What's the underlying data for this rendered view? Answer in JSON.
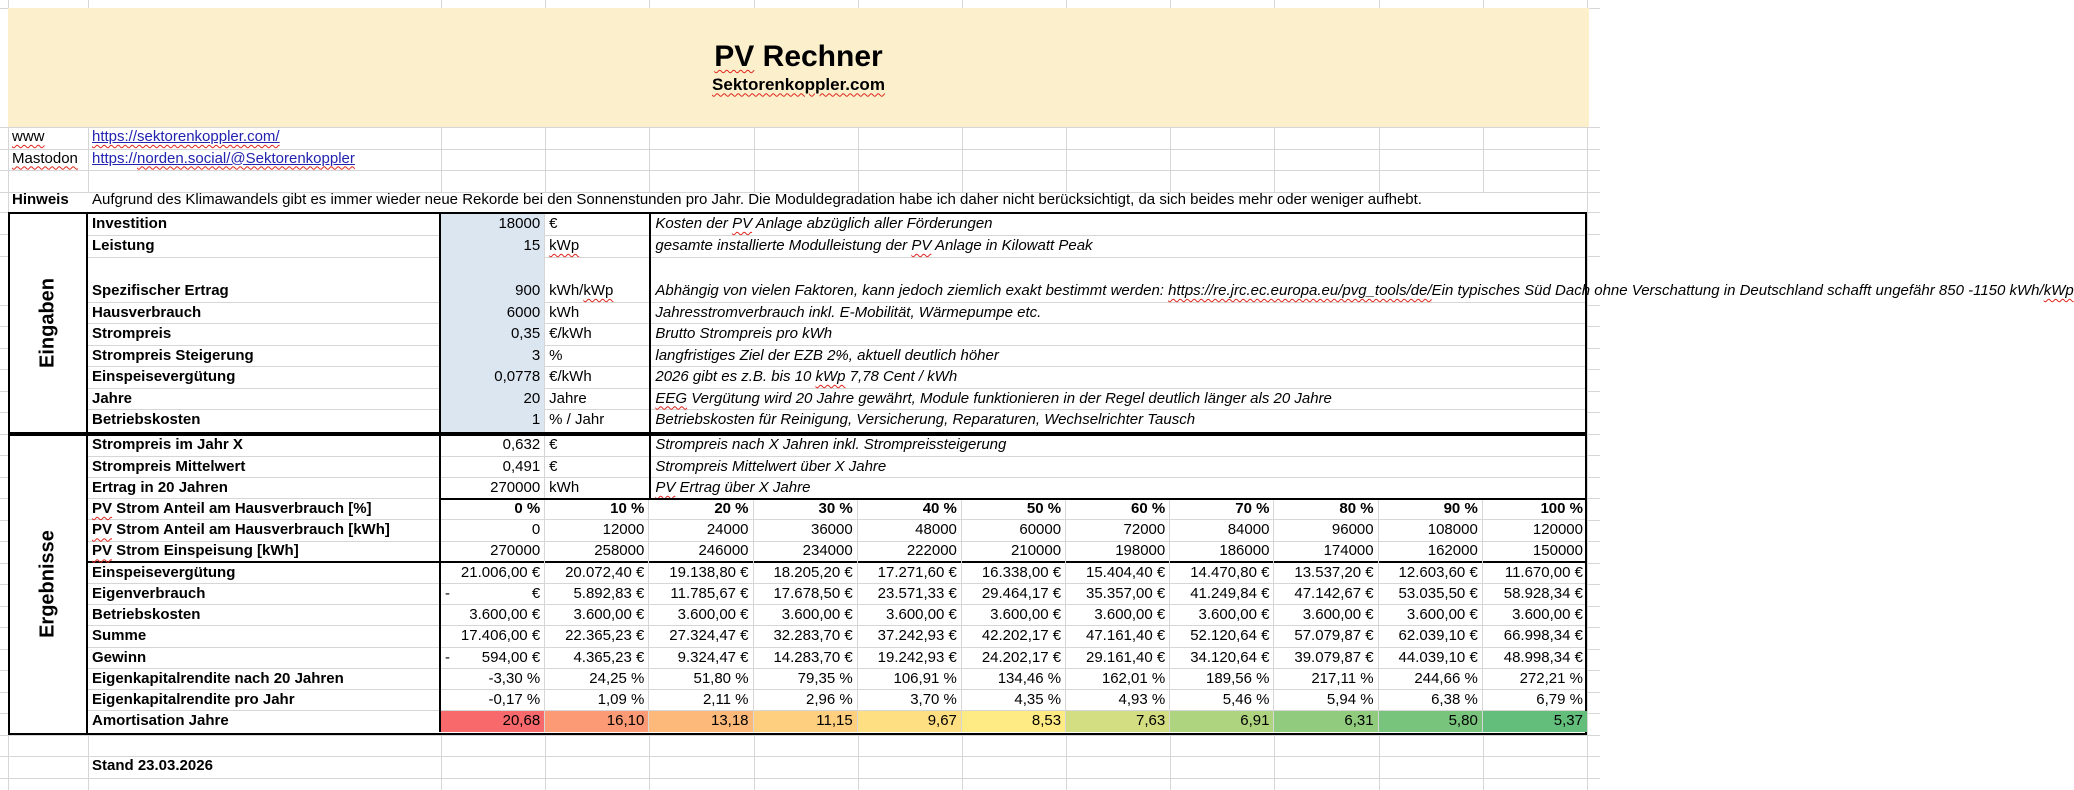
{
  "banner": {
    "title": "PV Rechner",
    "title_sq": [
      "PV"
    ],
    "subtitle": "Sektorenkoppler.com",
    "subtitle_sq": [
      "Sektorenkoppler.com"
    ]
  },
  "links": [
    {
      "label": "www",
      "label_sq": [
        "www"
      ],
      "url": "https://sektorenkoppler.com/",
      "url_sq": [
        "https://sektorenkoppler.com/"
      ]
    },
    {
      "label": "Mastodon",
      "label_sq": [
        "Mastodon"
      ],
      "url": "https://norden.social/@Sektorenkoppler",
      "url_sq": [
        "norden.social/@Sektorenkoppler"
      ]
    }
  ],
  "hinweis": {
    "label": "Hinweis",
    "text": "Aufgrund des Klimawandels gibt es immer wieder neue Rekorde bei den Sonnenstunden pro Jahr. Die Moduldegradation habe ich daher nicht berücksichtigt, da sich beides mehr oder weniger aufhebt."
  },
  "eingaben": {
    "section_label": "Eingaben",
    "rows": [
      {
        "label": "Investition",
        "value": "18000",
        "unit": "€",
        "comment": "Kosten der PV Anlage abzüglich aller Förderungen",
        "comment_sq": [
          "PV"
        ]
      },
      {
        "label": "Leistung",
        "value": "15",
        "unit": "kWp",
        "unit_sq": [
          "kWp"
        ],
        "comment": "gesamte installierte Modulleistung der PV Anlage in Kilowatt Peak",
        "comment_sq": [
          "PV"
        ]
      },
      {
        "label": "Spezifischer Ertrag",
        "value": "900",
        "unit": "kWh/kWp",
        "unit_sq": [
          "kWp"
        ],
        "comment": "Abhängig von vielen Faktoren, kann jedoch ziemlich exakt bestimmt werden: https://re.jrc.ec.europa.eu/pvg_tools/de/\nEin typisches Süd Dach ohne Verschattung in Deutschland schafft ungefähr 850 -1150 kWh/kWp",
        "comment_sq": [
          "https://re.jrc.ec.europa.eu/pvg_tools/de/",
          "kWp"
        ],
        "tall": true
      },
      {
        "label": "Hausverbrauch",
        "value": "6000",
        "unit": "kWh",
        "comment": "Jahresstromverbrauch inkl. E-Mobilität, Wärmepumpe etc."
      },
      {
        "label": "Strompreis",
        "value": "0,35",
        "unit": "€/kWh",
        "comment": "Brutto Strompreis pro kWh"
      },
      {
        "label": "Strompreis Steigerung",
        "value": "3",
        "unit": "%",
        "comment": "langfristiges Ziel der EZB 2%, aktuell deutlich höher"
      },
      {
        "label": "Einspeisevergütung",
        "value": "0,0778",
        "unit": "€/kWh",
        "comment": "2026 gibt es z.B. bis 10 kWp 7,78 Cent / kWh",
        "comment_sq": [
          "kWp"
        ]
      },
      {
        "label": "Jahre",
        "value": "20",
        "unit": "Jahre",
        "comment": "EEG Vergütung wird 20 Jahre gewährt, Module funktionieren in der Regel deutlich länger als 20 Jahre",
        "comment_sq": [
          "EEG"
        ]
      },
      {
        "label": "Betriebskosten",
        "value": "1",
        "unit": "% / Jahr",
        "comment": "Betriebskosten für Reinigung, Versicherung, Reparaturen, Wechselrichter Tausch"
      }
    ]
  },
  "ergebnisse": {
    "section_label": "Ergebnisse",
    "info_rows": [
      {
        "label": "Strompreis im Jahr X",
        "value": "0,632",
        "unit": "€",
        "comment": "Strompreis nach X Jahren inkl. Strompreissteigerung"
      },
      {
        "label": "Strompreis Mittelwert",
        "value": "0,491",
        "unit": "€",
        "comment": "Strompreis Mittelwert über X Jahre"
      },
      {
        "label": "Ertrag in 20 Jahren",
        "value": "270000",
        "unit": "kWh",
        "comment": "PV Ertrag über X Jahre",
        "comment_sq": [
          "PV"
        ]
      }
    ],
    "table": {
      "rows": [
        {
          "label": "PV Strom Anteil am Hausverbrauch [%]",
          "label_sq": [
            "PV"
          ],
          "bold_values": true,
          "black_top": true,
          "values": [
            "0 %",
            "10 %",
            "20 %",
            "30 %",
            "40 %",
            "50 %",
            "60 %",
            "70 %",
            "80 %",
            "90 %",
            "100 %"
          ]
        },
        {
          "label": "PV Strom Anteil am Hausverbrauch [kWh]",
          "label_sq": [
            "PV"
          ],
          "values": [
            "0",
            "12000",
            "24000",
            "36000",
            "48000",
            "60000",
            "72000",
            "84000",
            "96000",
            "108000",
            "120000"
          ]
        },
        {
          "label": "PV Strom Einspeisung [kWh]",
          "label_sq": [
            "PV"
          ],
          "thick_bottom": true,
          "values": [
            "270000",
            "258000",
            "246000",
            "234000",
            "222000",
            "210000",
            "198000",
            "186000",
            "174000",
            "162000",
            "150000"
          ]
        },
        {
          "label": "Einspeisevergütung",
          "values": [
            "21.006,00 €",
            "20.072,40 €",
            "19.138,80 €",
            "18.205,20 €",
            "17.271,60 €",
            "16.338,00 €",
            "15.404,40 €",
            "14.470,80 €",
            "13.537,20 €",
            "12.603,60 €",
            "11.670,00 €"
          ]
        },
        {
          "label": "Eigenverbrauch",
          "values": [
            "- €",
            "5.892,83 €",
            "11.785,67 €",
            "17.678,50 €",
            "23.571,33 €",
            "29.464,17 €",
            "35.357,00 €",
            "41.249,84 €",
            "47.142,67 €",
            "53.035,50 €",
            "58.928,34 €"
          ]
        },
        {
          "label": "Betriebskosten",
          "values": [
            "3.600,00 €",
            "3.600,00 €",
            "3.600,00 €",
            "3.600,00 €",
            "3.600,00 €",
            "3.600,00 €",
            "3.600,00 €",
            "3.600,00 €",
            "3.600,00 €",
            "3.600,00 €",
            "3.600,00 €"
          ]
        },
        {
          "label": "Summe",
          "values": [
            "17.406,00 €",
            "22.365,23 €",
            "27.324,47 €",
            "32.283,70 €",
            "37.242,93 €",
            "42.202,17 €",
            "47.161,40 €",
            "52.120,64 €",
            "57.079,87 €",
            "62.039,10 €",
            "66.998,34 €"
          ]
        },
        {
          "label": "Gewinn",
          "values": [
            "- 594,00 €",
            "4.365,23 €",
            "9.324,47 €",
            "14.283,70 €",
            "19.242,93 €",
            "24.202,17 €",
            "29.161,40 €",
            "34.120,64 €",
            "39.079,87 €",
            "44.039,10 €",
            "48.998,34 €"
          ]
        },
        {
          "label": "Eigenkapitalrendite nach 20 Jahren",
          "values": [
            "-3,30 %",
            "24,25 %",
            "51,80 %",
            "79,35 %",
            "106,91 %",
            "134,46 %",
            "162,01 %",
            "189,56 %",
            "217,11 %",
            "244,66 %",
            "272,21 %"
          ]
        },
        {
          "label": "Eigenkapitalrendite pro Jahr",
          "values": [
            "-0,17 %",
            "1,09 %",
            "2,11 %",
            "2,96 %",
            "3,70 %",
            "4,35 %",
            "4,93 %",
            "5,46 %",
            "5,94 %",
            "6,38 %",
            "6,79 %"
          ]
        },
        {
          "label": "Amortisation Jahre",
          "values": [
            "20,68",
            "16,10",
            "13,18",
            "11,15",
            "9,67",
            "8,53",
            "7,63",
            "6,91",
            "6,31",
            "5,80",
            "5,37"
          ],
          "cell_colors": [
            "#F8696B",
            "#FB9A74",
            "#FCB97A",
            "#FDCF7F",
            "#FEDF82",
            "#FFEB84",
            "#D2DE81",
            "#AFD47F",
            "#91CB7E",
            "#78C47C",
            "#63BE7B"
          ]
        }
      ]
    }
  },
  "footer": {
    "stand": "Stand 23.03.2026"
  },
  "colors": {
    "banner_bg": "#FBEFCC",
    "input_cell_bg": "#DCE6F1",
    "link": "#2222B0",
    "squiggle": "#E0241B",
    "gridline": "#D6D6D6"
  }
}
